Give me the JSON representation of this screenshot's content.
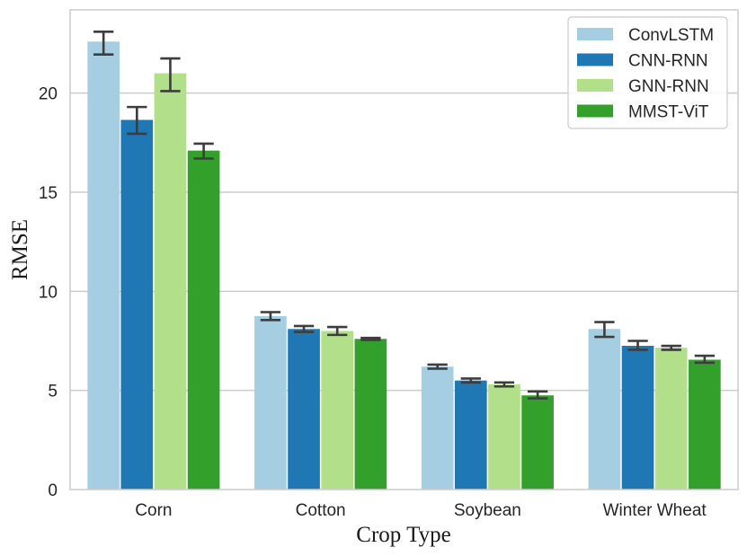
{
  "chart_data": {
    "type": "bar",
    "xlabel": "Crop Type",
    "ylabel": "RMSE",
    "categories": [
      "Corn",
      "Cotton",
      "Soybean",
      "Winter Wheat"
    ],
    "ylim": [
      0,
      24.2
    ],
    "yticks": [
      0,
      5,
      10,
      15,
      20
    ],
    "grid": "horizontal",
    "legend_position": "top-right",
    "series": [
      {
        "name": "ConvLSTM",
        "color": "#a6cee3",
        "values": [
          22.6,
          8.75,
          6.2,
          8.1
        ],
        "err_low": [
          21.95,
          8.55,
          6.1,
          7.7
        ],
        "err_high": [
          23.1,
          8.95,
          6.3,
          8.45
        ]
      },
      {
        "name": "CNN-RNN",
        "color": "#1f78b4",
        "values": [
          18.65,
          8.1,
          5.5,
          7.25
        ],
        "err_low": [
          17.95,
          7.95,
          5.4,
          7.05
        ],
        "err_high": [
          19.3,
          8.25,
          5.6,
          7.5
        ]
      },
      {
        "name": "GNN-RNN",
        "color": "#b2df8a",
        "values": [
          21.0,
          8.0,
          5.3,
          7.15
        ],
        "err_low": [
          20.1,
          7.8,
          5.2,
          7.05
        ],
        "err_high": [
          21.75,
          8.2,
          5.4,
          7.25
        ]
      },
      {
        "name": "MMST-ViT",
        "color": "#33a02c",
        "values": [
          17.1,
          7.6,
          4.75,
          6.55
        ],
        "err_low": [
          16.7,
          7.55,
          4.6,
          6.4
        ],
        "err_high": [
          17.45,
          7.65,
          4.95,
          6.75
        ]
      }
    ]
  }
}
